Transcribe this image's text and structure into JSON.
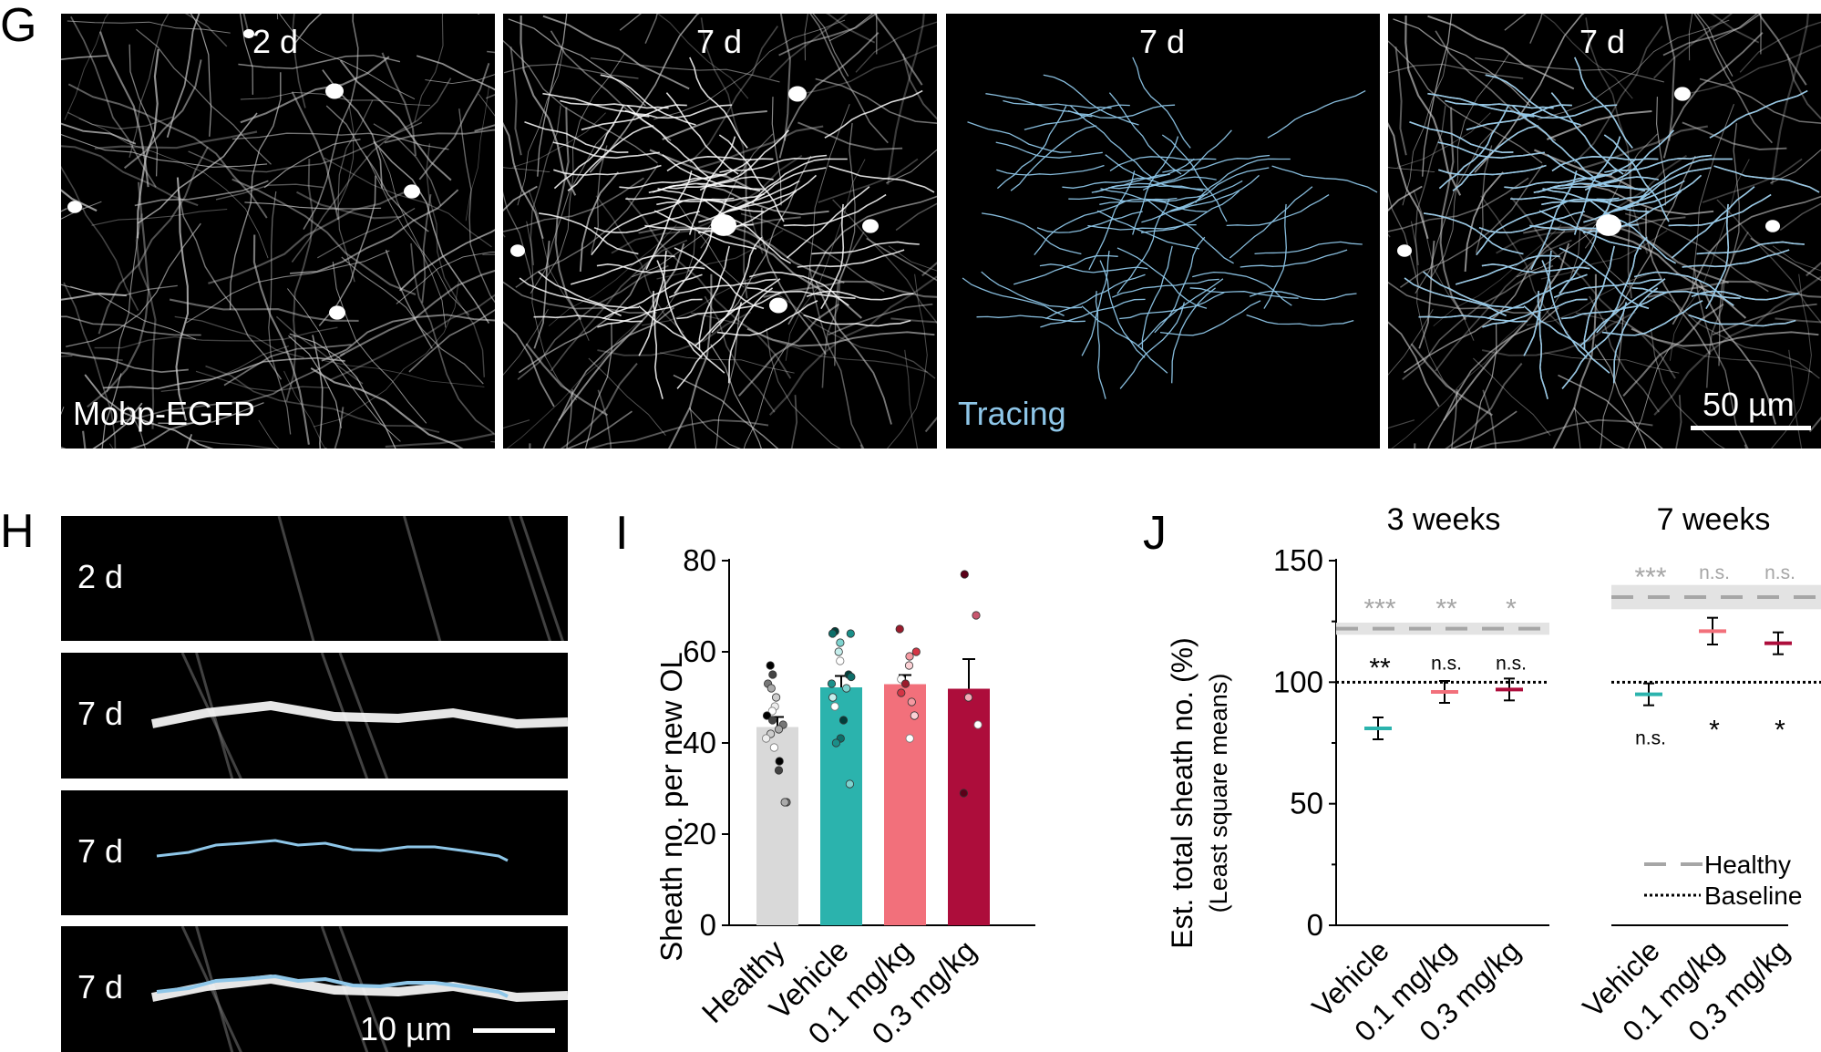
{
  "panel_g": {
    "label": "G",
    "images": [
      {
        "time": "2 d",
        "caption": "Mobp-EGFP"
      },
      {
        "time": "7 d",
        "caption": ""
      },
      {
        "time": "7 d",
        "caption": "Tracing"
      },
      {
        "time": "7 d",
        "caption": "50 µm"
      }
    ]
  },
  "panel_h": {
    "label": "H",
    "strips": [
      "2 d",
      "7 d",
      "7 d",
      "7 d"
    ],
    "scale": "10 µm"
  },
  "colors": {
    "healthy": "#d9d9d9",
    "vehicle": "#2bb3ad",
    "low": "#f2707b",
    "high": "#ad0d3b",
    "tracing": "#8ec6e8"
  },
  "chart_data": [
    {
      "panel": "I",
      "type": "bar",
      "ylabel": "Sheath no. per new OL",
      "ylim": [
        0,
        80
      ],
      "yticks": [
        "0",
        "20",
        "40",
        "60",
        "80"
      ],
      "categories": [
        "Healthy",
        "Vehicle",
        "0.1 mg/kg",
        "0.3 mg/kg"
      ],
      "values": [
        43.5,
        52.2,
        52.9,
        51.9
      ],
      "sem": [
        2.2,
        2.5,
        2.0,
        6.5
      ],
      "points": [
        [
          57,
          55,
          53,
          52,
          50,
          48,
          47,
          46,
          45,
          44,
          43,
          42,
          41,
          39,
          36,
          34,
          27,
          27
        ],
        [
          64.5,
          64,
          64,
          62,
          60,
          58,
          55,
          54.5,
          53,
          52,
          50,
          48,
          45,
          41,
          40,
          31
        ],
        [
          65,
          60,
          59,
          57,
          54,
          53,
          51,
          49,
          46,
          41
        ],
        [
          77,
          68,
          50,
          44,
          29
        ]
      ]
    },
    {
      "panel": "J",
      "type": "scatter",
      "ylabel": "Est. total sheath no. (%)",
      "ylabel2": "(Least square means)",
      "ylim": [
        0,
        150
      ],
      "yticks": [
        "0",
        "50",
        "100",
        "150"
      ],
      "groups": [
        {
          "title": "3 weeks",
          "categories": [
            "Vehicle",
            "0.1 mg/kg",
            "0.3 mg/kg"
          ],
          "means": [
            81,
            96,
            97
          ],
          "errors": [
            4.5,
            4.5,
            4.5
          ],
          "sig_vs_healthy": [
            "***",
            "**",
            "*"
          ],
          "sig_vs_baseline": [
            "**",
            "n.s.",
            "n.s."
          ],
          "healthy": 122,
          "healthy_band": [
            119.5,
            124.5
          ]
        },
        {
          "title": "7 weeks",
          "categories": [
            "Vehicle",
            "0.1 mg/kg",
            "0.3 mg/kg"
          ],
          "means": [
            95,
            121,
            116
          ],
          "errors": [
            4.5,
            5.5,
            4.5
          ],
          "sig_vs_healthy": [
            "***",
            "n.s.",
            "n.s."
          ],
          "sig_vs_baseline": [
            "n.s.",
            "*",
            "*"
          ],
          "healthy": 135,
          "healthy_band": [
            130,
            140
          ]
        }
      ],
      "baseline": 100,
      "legend": [
        "Healthy",
        "Baseline"
      ]
    }
  ]
}
